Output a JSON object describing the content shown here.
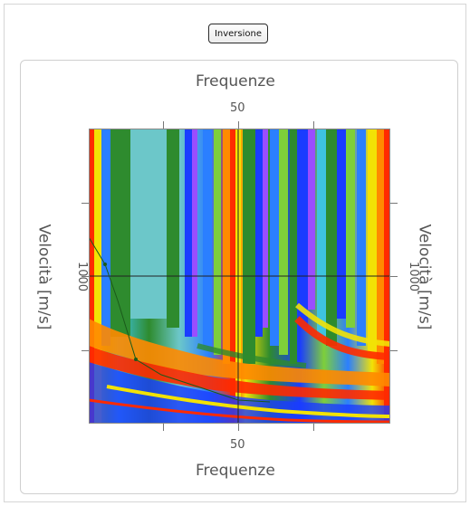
{
  "toolbar": {
    "inversion_button_label": "Inversione"
  },
  "plot": {
    "x_axis_title_top": "Frequenze",
    "x_axis_title_bottom": "Frequenze",
    "y_axis_title_left": "Velocità [m/s]",
    "y_axis_title_right": "Velocità [m/s]",
    "x_tick_top": "50",
    "x_tick_bottom": "50",
    "y_tick_left": "1000",
    "y_tick_right": "1000",
    "colormap": [
      "#1a3cff",
      "#2b7fff",
      "#3ec3e0",
      "#6cc7c9",
      "#2e8b2e",
      "#7ecf3a",
      "#f2e205",
      "#ff8a00",
      "#ff2a00",
      "#9a4dff"
    ]
  }
}
